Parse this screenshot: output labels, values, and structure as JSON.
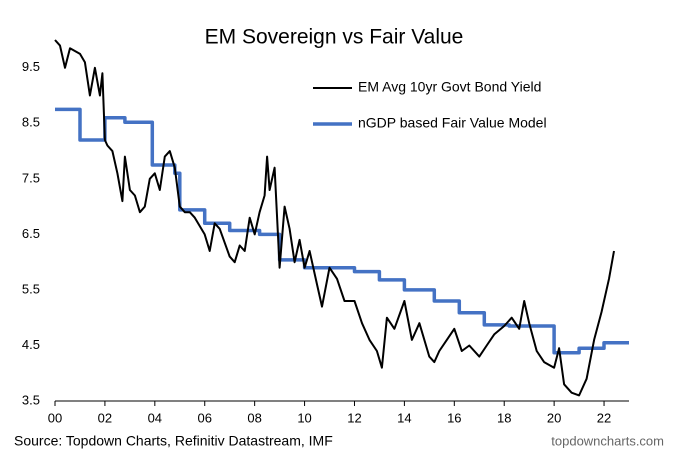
{
  "chart_data": {
    "type": "line",
    "title": "EM Sovereign vs Fair Value",
    "source": "Source: Topdown Charts, Refinitiv Datastream, IMF",
    "watermark": "topdowncharts.com",
    "xlim": [
      0,
      23
    ],
    "ylim": [
      3.5,
      10
    ],
    "xticks": [
      {
        "value": 0,
        "label": "00"
      },
      {
        "value": 2,
        "label": "02"
      },
      {
        "value": 4,
        "label": "04"
      },
      {
        "value": 6,
        "label": "06"
      },
      {
        "value": 8,
        "label": "08"
      },
      10,
      12,
      14,
      16,
      18,
      20,
      22
    ],
    "yticks": [
      3.5,
      4.5,
      5.5,
      6.5,
      7.5,
      8.5,
      9.5
    ],
    "grid": false,
    "legend": "upper right",
    "series": [
      {
        "name": "EM Avg 10yr Govt Bond Yield",
        "color": "#000000",
        "x": [
          0.0,
          0.2,
          0.4,
          0.6,
          1.0,
          1.2,
          1.4,
          1.6,
          1.8,
          1.9,
          2.0,
          2.1,
          2.3,
          2.5,
          2.7,
          2.8,
          3.0,
          3.2,
          3.4,
          3.6,
          3.8,
          4.0,
          4.2,
          4.4,
          4.6,
          4.8,
          5.0,
          5.2,
          5.4,
          5.6,
          6.0,
          6.2,
          6.4,
          6.6,
          7.0,
          7.2,
          7.4,
          7.6,
          7.8,
          8.0,
          8.2,
          8.4,
          8.5,
          8.6,
          8.8,
          9.0,
          9.2,
          9.4,
          9.6,
          9.8,
          10.0,
          10.2,
          10.5,
          10.7,
          11.0,
          11.3,
          11.6,
          12.0,
          12.3,
          12.6,
          12.9,
          13.1,
          13.3,
          13.6,
          14.0,
          14.3,
          14.6,
          15.0,
          15.2,
          15.4,
          15.7,
          16.0,
          16.3,
          16.6,
          17.0,
          17.3,
          17.6,
          18.0,
          18.3,
          18.6,
          18.8,
          19.0,
          19.3,
          19.6,
          20.0,
          20.2,
          20.4,
          20.7,
          21.0,
          21.3,
          21.6,
          21.9,
          22.2,
          22.4
        ],
        "values": [
          10.0,
          9.9,
          9.5,
          9.85,
          9.75,
          9.6,
          9.0,
          9.5,
          9.0,
          9.4,
          8.2,
          8.1,
          8.0,
          7.6,
          7.1,
          7.9,
          7.3,
          7.2,
          6.9,
          7.0,
          7.5,
          7.6,
          7.3,
          7.9,
          8.0,
          7.7,
          7.0,
          6.9,
          6.9,
          6.8,
          6.5,
          6.2,
          6.7,
          6.6,
          6.1,
          6.0,
          6.3,
          6.2,
          6.8,
          6.5,
          6.9,
          7.2,
          7.9,
          7.3,
          7.7,
          5.9,
          7.0,
          6.6,
          6.0,
          6.4,
          5.9,
          6.2,
          5.6,
          5.2,
          5.9,
          5.7,
          5.3,
          5.3,
          4.9,
          4.6,
          4.4,
          4.1,
          5.0,
          4.8,
          5.3,
          4.6,
          4.9,
          4.3,
          4.2,
          4.4,
          4.6,
          4.8,
          4.4,
          4.5,
          4.3,
          4.5,
          4.7,
          4.85,
          5.0,
          4.8,
          5.3,
          4.9,
          4.4,
          4.2,
          4.1,
          4.45,
          3.8,
          3.65,
          3.6,
          3.9,
          4.6,
          5.1,
          5.7,
          6.2
        ]
      },
      {
        "name": "nGDP based Fair Value Model",
        "color": "#4472c4",
        "x": [
          0,
          1,
          1,
          2,
          2,
          2.8,
          2.8,
          3.9,
          3.9,
          4.8,
          4.8,
          5,
          5,
          6,
          6,
          7,
          7,
          8.2,
          8.2,
          9,
          9,
          10,
          10,
          12,
          12,
          13,
          13,
          14,
          14,
          15.2,
          15.2,
          16.2,
          16.2,
          17.2,
          17.2,
          18.2,
          18.2,
          20,
          20,
          21,
          21,
          22,
          22,
          23
        ],
        "values": [
          8.75,
          8.75,
          8.2,
          8.2,
          8.6,
          8.6,
          8.52,
          8.52,
          7.75,
          7.75,
          7.6,
          7.6,
          6.94,
          6.94,
          6.7,
          6.7,
          6.57,
          6.57,
          6.5,
          6.5,
          6.04,
          6.04,
          5.9,
          5.9,
          5.83,
          5.83,
          5.68,
          5.68,
          5.5,
          5.5,
          5.3,
          5.3,
          5.09,
          5.09,
          4.87,
          4.87,
          4.85,
          4.85,
          4.37,
          4.37,
          4.45,
          4.45,
          4.55,
          4.55
        ]
      }
    ]
  }
}
